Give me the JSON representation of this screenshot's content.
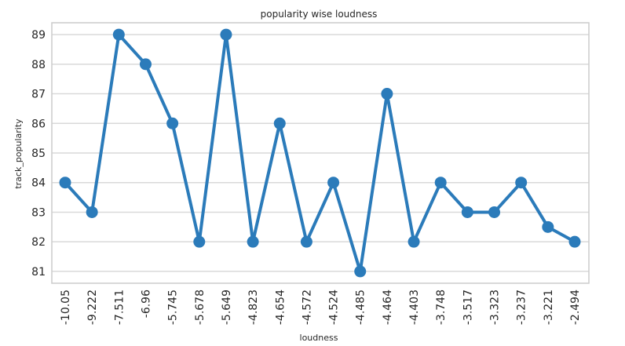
{
  "chart_data": {
    "type": "line",
    "title": "popularity wise loudness",
    "xlabel": "loudness",
    "ylabel": "track_popularity",
    "categories": [
      "-10.05",
      "-9.222",
      "-7.511",
      "-6.96",
      "-5.745",
      "-5.678",
      "-5.649",
      "-4.823",
      "-4.654",
      "-4.572",
      "-4.524",
      "-4.485",
      "-4.464",
      "-4.403",
      "-3.748",
      "-3.517",
      "-3.323",
      "-3.237",
      "-3.221",
      "-2.494"
    ],
    "series": [
      {
        "values": [
          84,
          83,
          89,
          88,
          86,
          82,
          89,
          82,
          86,
          82,
          84,
          81,
          87,
          82,
          84,
          83,
          83,
          84,
          82.5,
          82
        ]
      }
    ],
    "yticks": [
      "81",
      "82",
      "83",
      "84",
      "85",
      "86",
      "87",
      "88",
      "89"
    ],
    "ylim": [
      80.6,
      89.4
    ],
    "grid": true,
    "line_color": "#2b7bba",
    "grid_color": "#d9d9d9",
    "frame_color": "#cccccc"
  }
}
